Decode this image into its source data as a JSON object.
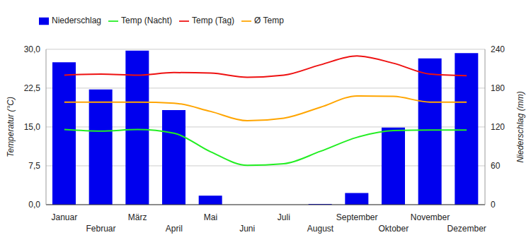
{
  "chart_data": {
    "type": "combo",
    "categories": [
      "Januar",
      "Februar",
      "März",
      "April",
      "Mai",
      "Juni",
      "Juli",
      "August",
      "September",
      "Oktober",
      "November",
      "Dezember"
    ],
    "series": [
      {
        "name": "Niederschlag",
        "type": "bar",
        "axis": "y2",
        "color": "#0000ee",
        "values": [
          220,
          178,
          238,
          146,
          14,
          0,
          0,
          1,
          18,
          119,
          226,
          234
        ]
      },
      {
        "name": "Temp (Tag)",
        "type": "line",
        "color": "#ee1111",
        "values": [
          25.0,
          25.2,
          25.0,
          25.5,
          25.4,
          24.6,
          25.0,
          27.0,
          28.7,
          27.3,
          25.2,
          24.9
        ]
      },
      {
        "name": "Ø Temp",
        "type": "line",
        "color": "#ffa500",
        "values": [
          19.8,
          19.8,
          19.8,
          19.6,
          18.0,
          16.2,
          16.7,
          18.8,
          21.0,
          20.9,
          19.8,
          19.8
        ]
      },
      {
        "name": "Temp (Nacht)",
        "type": "line",
        "color": "#22ee22",
        "values": [
          14.5,
          14.2,
          14.5,
          13.8,
          10.2,
          7.6,
          7.9,
          10.3,
          13.0,
          14.3,
          14.4,
          14.4
        ]
      }
    ],
    "y_label": "Temperatur (°C)",
    "y2_label": "Niederschlag (mm)",
    "ylim": [
      0,
      30
    ],
    "yticks": [
      {
        "value": 0,
        "label": "0,0"
      },
      {
        "value": 7.5,
        "label": "7,5"
      },
      {
        "value": 15,
        "label": "15,0"
      },
      {
        "value": 22.5,
        "label": "22,5"
      },
      {
        "value": 30,
        "label": "30,0"
      }
    ],
    "y2lim": [
      0,
      240
    ],
    "y2ticks": [
      0,
      60,
      120,
      180,
      240
    ],
    "grid": true,
    "legend": "top-left"
  }
}
